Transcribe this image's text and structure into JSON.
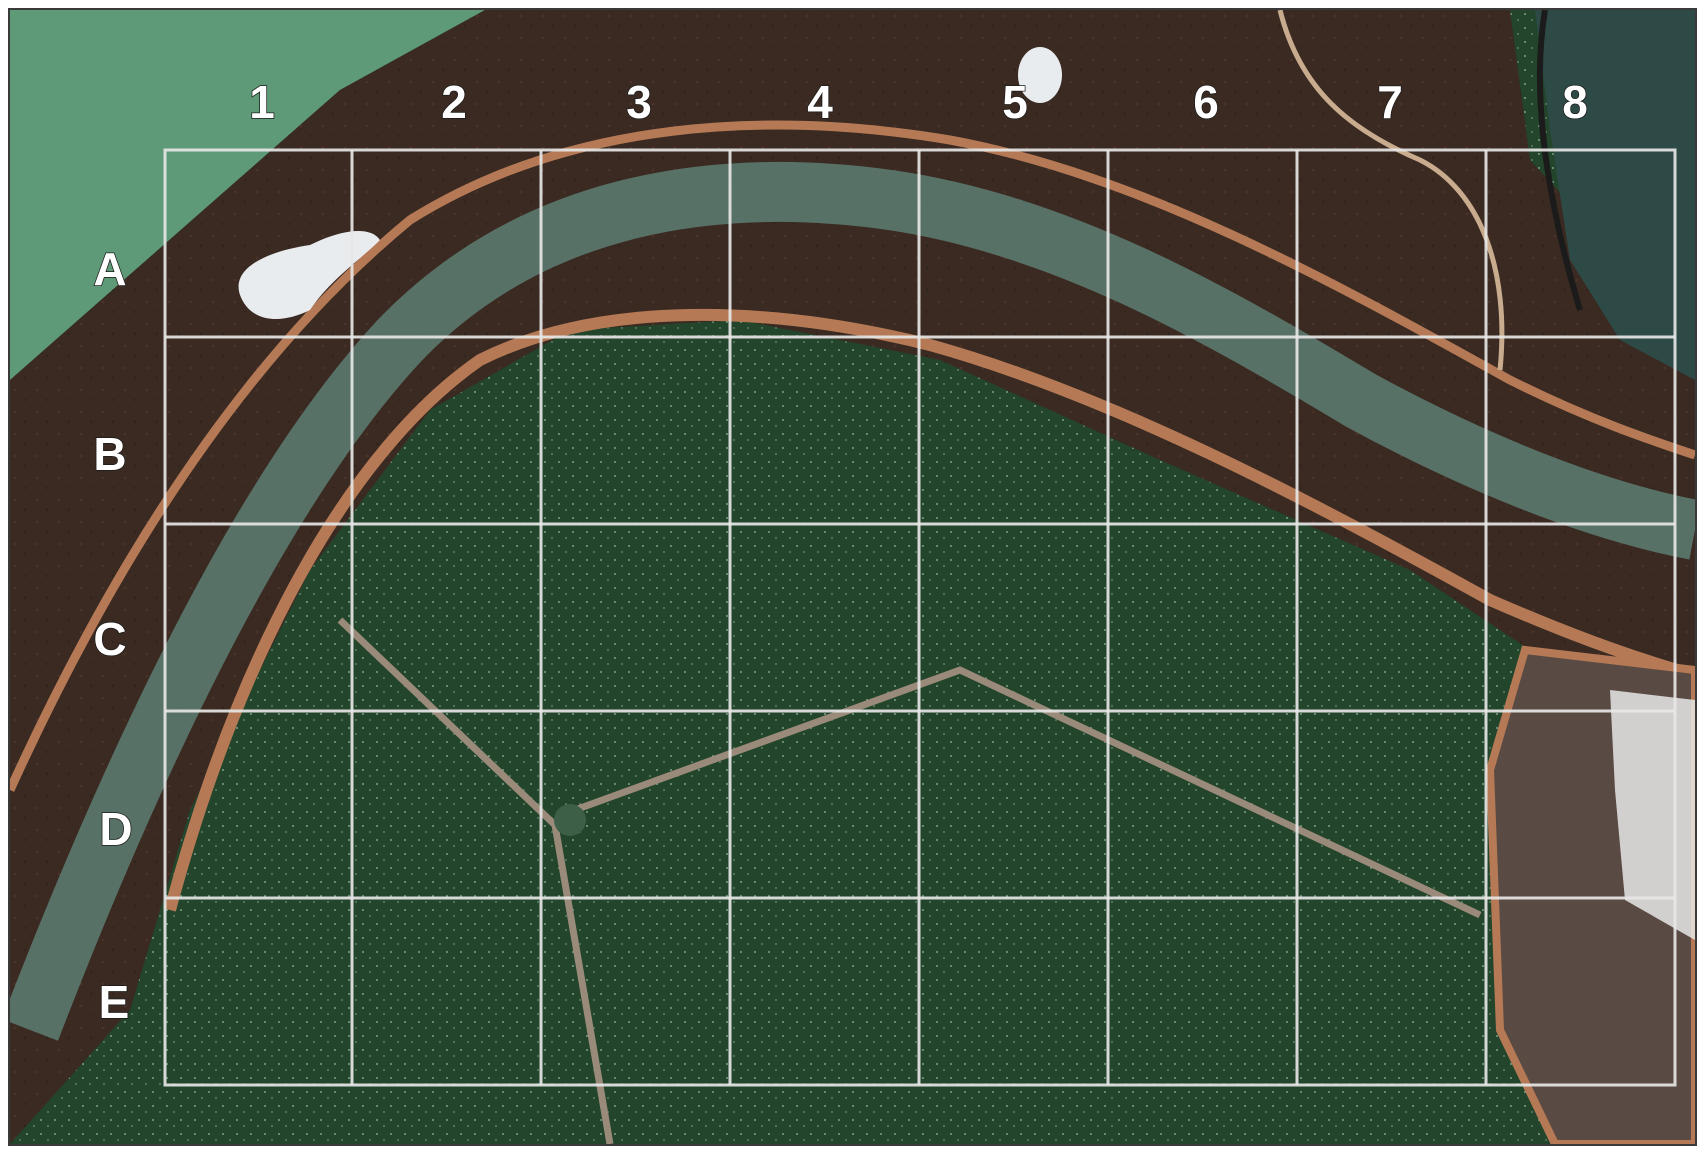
{
  "map": {
    "column_labels": [
      "1",
      "2",
      "3",
      "4",
      "5",
      "6",
      "7",
      "8"
    ],
    "row_labels": [
      "A",
      "B",
      "C",
      "D",
      "E"
    ],
    "colors": {
      "grid": "#e6e6e6",
      "label": "#ffffff",
      "water_dark": "#22452b",
      "marsh": "#3a2a22",
      "levee": "#b57a55",
      "channel": "#5e7e72",
      "salt_pan": "#5a4a44"
    }
  }
}
